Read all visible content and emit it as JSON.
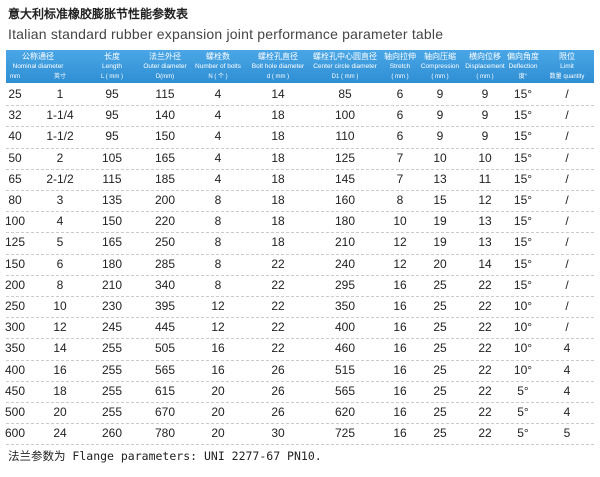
{
  "header": {
    "title": "意大利标准橡胶膨胀节性能参数表",
    "subtitle": "Italian standard rubber expansion joint performance parameter table"
  },
  "table": {
    "columns": [
      {
        "zh": "公称通径",
        "en": "Nominal diameter",
        "units": [
          "mm",
          "英寸"
        ]
      },
      {
        "zh": "长度",
        "en": "Length",
        "unit": "L ( mm )"
      },
      {
        "zh": "法兰外径",
        "en": "Outer diameter",
        "unit": "D(mm)"
      },
      {
        "zh": "螺栓数",
        "en": "Number of bolts",
        "unit": "N ( 个 )"
      },
      {
        "zh": "螺栓孔直径",
        "en": "Bolt hole diameter",
        "unit": "d ( mm )"
      },
      {
        "zh": "螺栓孔中心圆直径",
        "en": "Center circle diameter",
        "unit": "D1 ( mm )"
      },
      {
        "zh": "轴向拉伸",
        "en": "Stretch",
        "unit": "( mm )"
      },
      {
        "zh": "轴向压缩",
        "en": "Compression",
        "unit": "( mm )"
      },
      {
        "zh": "横向位移",
        "en": "Displacement",
        "unit": "( mm )"
      },
      {
        "zh": "偏向角度",
        "en": "Deflection",
        "unit": "度°"
      },
      {
        "zh": "限位",
        "en": "Limit",
        "unit": "数量 quantity"
      }
    ],
    "rows": [
      [
        "25",
        "1",
        "95",
        "115",
        "4",
        "14",
        "85",
        "6",
        "9",
        "9",
        "15°",
        "/"
      ],
      [
        "32",
        "1-1/4",
        "95",
        "140",
        "4",
        "18",
        "100",
        "6",
        "9",
        "9",
        "15°",
        "/"
      ],
      [
        "40",
        "1-1/2",
        "95",
        "150",
        "4",
        "18",
        "110",
        "6",
        "9",
        "9",
        "15°",
        "/"
      ],
      [
        "50",
        "2",
        "105",
        "165",
        "4",
        "18",
        "125",
        "7",
        "10",
        "10",
        "15°",
        "/"
      ],
      [
        "65",
        "2-1/2",
        "115",
        "185",
        "4",
        "18",
        "145",
        "7",
        "13",
        "11",
        "15°",
        "/"
      ],
      [
        "80",
        "3",
        "135",
        "200",
        "8",
        "18",
        "160",
        "8",
        "15",
        "12",
        "15°",
        "/"
      ],
      [
        "100",
        "4",
        "150",
        "220",
        "8",
        "18",
        "180",
        "10",
        "19",
        "13",
        "15°",
        "/"
      ],
      [
        "125",
        "5",
        "165",
        "250",
        "8",
        "18",
        "210",
        "12",
        "19",
        "13",
        "15°",
        "/"
      ],
      [
        "150",
        "6",
        "180",
        "285",
        "8",
        "22",
        "240",
        "12",
        "20",
        "14",
        "15°",
        "/"
      ],
      [
        "200",
        "8",
        "210",
        "340",
        "8",
        "22",
        "295",
        "16",
        "25",
        "22",
        "15°",
        "/"
      ],
      [
        "250",
        "10",
        "230",
        "395",
        "12",
        "22",
        "350",
        "16",
        "25",
        "22",
        "10°",
        "/"
      ],
      [
        "300",
        "12",
        "245",
        "445",
        "12",
        "22",
        "400",
        "16",
        "25",
        "22",
        "10°",
        "/"
      ],
      [
        "350",
        "14",
        "255",
        "505",
        "16",
        "22",
        "460",
        "16",
        "25",
        "22",
        "10°",
        "4"
      ],
      [
        "400",
        "16",
        "255",
        "565",
        "16",
        "26",
        "515",
        "16",
        "25",
        "22",
        "10°",
        "4"
      ],
      [
        "450",
        "18",
        "255",
        "615",
        "20",
        "26",
        "565",
        "16",
        "25",
        "22",
        "5°",
        "4"
      ],
      [
        "500",
        "20",
        "255",
        "670",
        "20",
        "26",
        "620",
        "16",
        "25",
        "22",
        "5°",
        "4"
      ],
      [
        "600",
        "24",
        "260",
        "780",
        "20",
        "30",
        "725",
        "16",
        "25",
        "22",
        "5°",
        "5"
      ]
    ]
  },
  "footer": {
    "note": "法兰参数为 Flange parameters: UNI 2277-67 PN10."
  }
}
